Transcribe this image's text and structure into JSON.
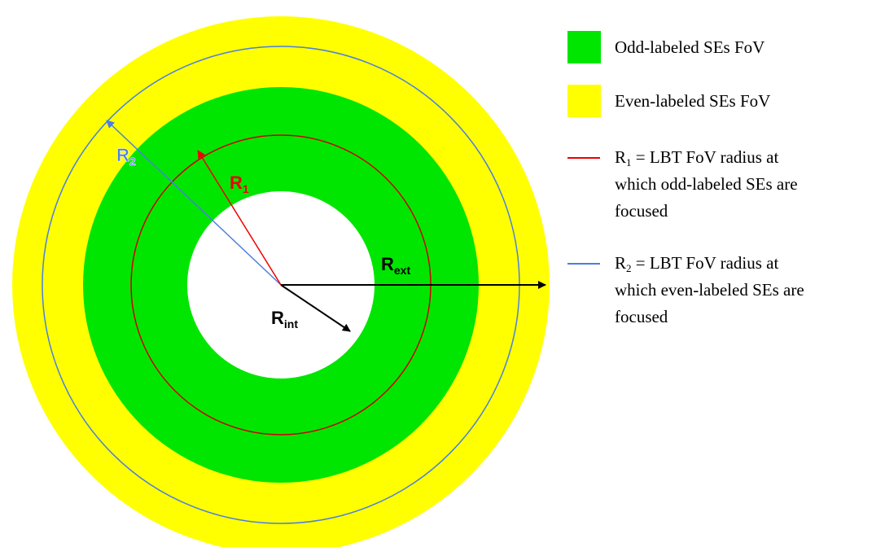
{
  "diagram": {
    "labels": {
      "r2": {
        "symbol": "R",
        "subscript": "2"
      },
      "r1": {
        "symbol": "R",
        "subscript": "1"
      },
      "rext": {
        "symbol": "R",
        "subscript": "ext"
      },
      "rint": {
        "symbol": "R",
        "subscript": "int"
      }
    },
    "legend": [
      {
        "text": "Odd-labeled SEs FoV"
      },
      {
        "text": "Even-labeled SEs FoV"
      },
      {
        "symbol": "R",
        "subscript": "1",
        "lines": [
          "= LBT FoV radius at",
          "which odd-labeled SEs are",
          "focused"
        ]
      },
      {
        "symbol": "R",
        "subscript": "2",
        "lines": [
          "= LBT FoV radius at",
          "which even-labeled SEs are",
          "focused"
        ]
      }
    ]
  }
}
